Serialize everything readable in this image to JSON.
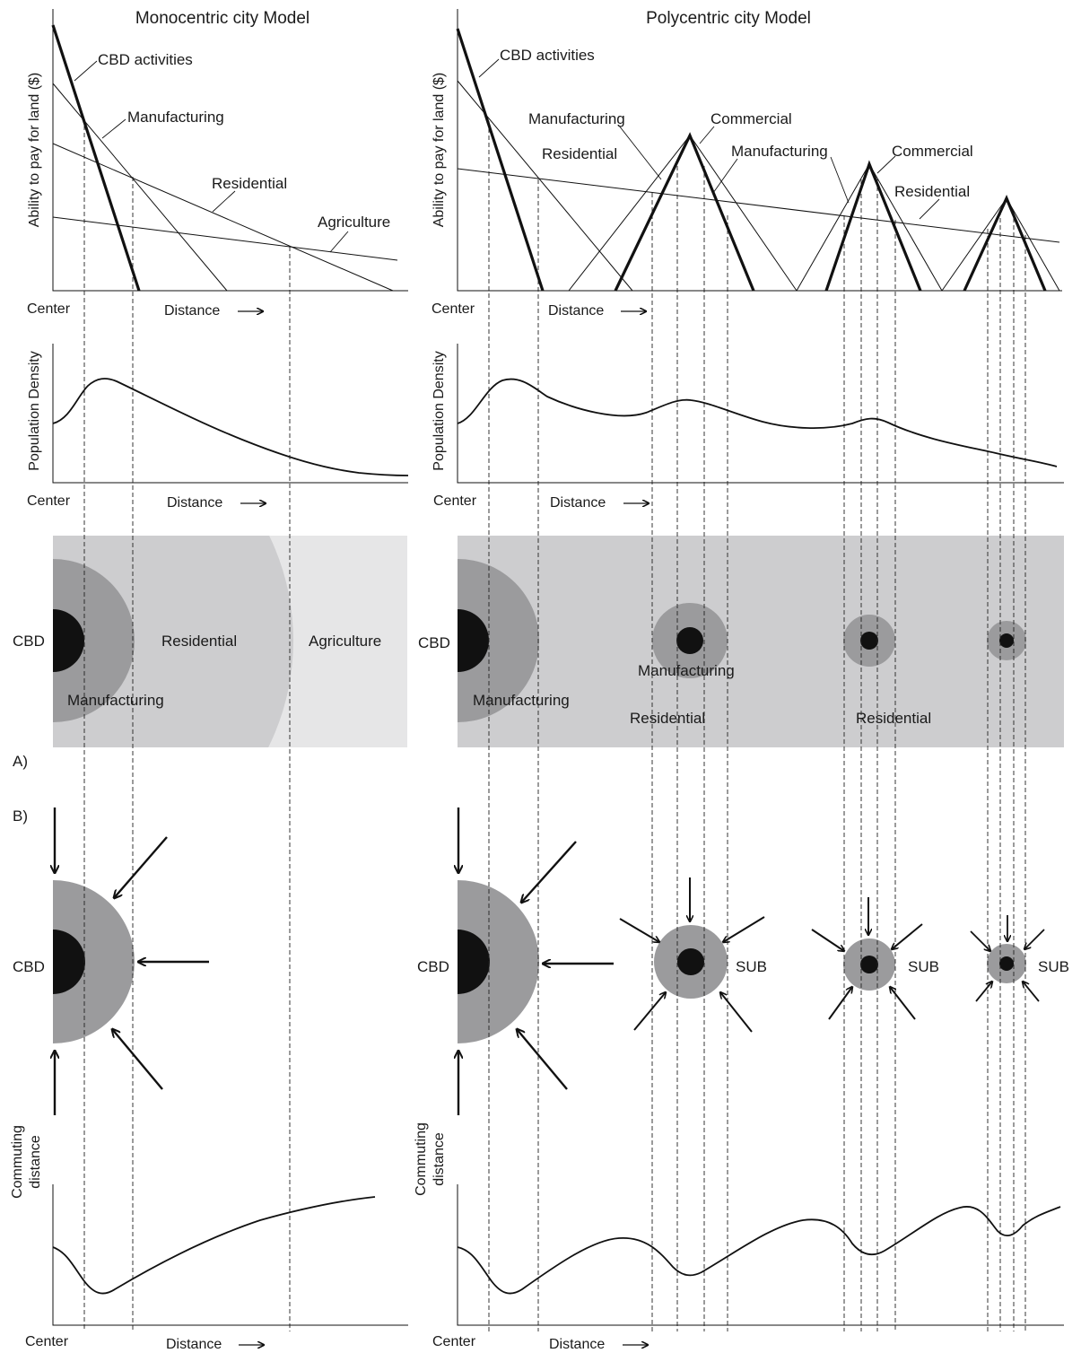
{
  "titles": {
    "mono": "Monocentric city Model",
    "poly": "Polycentric city Model"
  },
  "axes": {
    "bid_rent_y": "Ability to pay for land ($)",
    "density_y": "Population Density",
    "commute_y_line1": "Commuting",
    "commute_y_line2": "distance",
    "center": "Center",
    "distance": "Distance"
  },
  "mono_bid_labels": {
    "cbd": "CBD activities",
    "manufacturing": "Manufacturing",
    "residential": "Residential",
    "agriculture": "Agriculture"
  },
  "poly_bid_labels": {
    "cbd": "CBD activities",
    "manufacturing_1": "Manufacturing",
    "residential_1": "Residential",
    "commercial_1": "Commercial",
    "manufacturing_2": "Manufacturing",
    "commercial_2": "Commercial",
    "residential_2": "Residential"
  },
  "mono_zones": {
    "cbd": "CBD",
    "residential": "Residential",
    "agriculture": "Agriculture",
    "manufacturing": "Manufacturing"
  },
  "poly_zones": {
    "cbd": "CBD",
    "manufacturing_1": "Manufacturing",
    "manufacturing_2": "Manufacturing",
    "residential_1": "Residential",
    "residential_2": "Residential"
  },
  "panel_labels": {
    "a": "A)",
    "b": "B)"
  },
  "commute": {
    "cbd_mono": "CBD",
    "cbd_poly": "CBD",
    "sub_1": "SUB",
    "sub_2": "SUB",
    "sub_3": "SUB"
  },
  "colors": {
    "ink": "#1a1a1a",
    "cbd_core": "#111111",
    "manufacturing_ring": "#9b9b9d",
    "residential_zone": "#cdcdcf",
    "agriculture_zone": "#e6e6e7"
  }
}
